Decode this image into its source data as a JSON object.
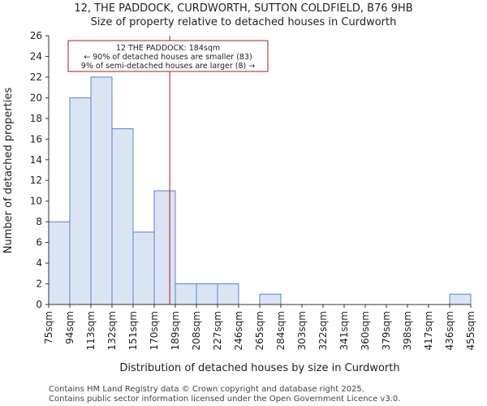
{
  "title_line1": "12, THE PADDOCK, CURDWORTH, SUTTON COLDFIELD, B76 9HB",
  "title_line2": "Size of property relative to detached houses in Curdworth",
  "footer_line1": "Contains HM Land Registry data © Crown copyright and database right 2025.",
  "footer_line2": "Contains public sector information licensed under the Open Government Licence v3.0.",
  "colors": {
    "bar_fill": "#dae4f3",
    "bar_stroke": "#5b84c4",
    "marker": "#b01818",
    "annotation_border": "#b01818"
  },
  "chart_data": {
    "type": "bar",
    "title": "12, THE PADDOCK, CURDWORTH, SUTTON COLDFIELD, B76 9HB",
    "subtitle": "Size of property relative to detached houses in Curdworth",
    "xlabel": "Distribution of detached houses by size in Curdworth",
    "ylabel": "Number of detached properties",
    "bin_edges": [
      "75sqm",
      "94sqm",
      "113sqm",
      "132sqm",
      "151sqm",
      "170sqm",
      "189sqm",
      "208sqm",
      "227sqm",
      "246sqm",
      "265sqm",
      "284sqm",
      "303sqm",
      "322sqm",
      "341sqm",
      "360sqm",
      "379sqm",
      "398sqm",
      "417sqm",
      "436sqm",
      "455sqm"
    ],
    "values": [
      8,
      20,
      22,
      17,
      7,
      11,
      2,
      2,
      2,
      0,
      1,
      0,
      0,
      0,
      0,
      0,
      0,
      0,
      0,
      1
    ],
    "ylim": [
      0,
      26
    ],
    "yticks": [
      0,
      2,
      4,
      6,
      8,
      10,
      12,
      14,
      16,
      18,
      20,
      22,
      24,
      26
    ],
    "grid": false,
    "marker": {
      "value_sqm": 184,
      "label_line1": "12 THE PADDOCK: 184sqm",
      "label_line2": "← 90% of detached houses are smaller (83)",
      "label_line3": "9% of semi-detached houses are larger (8) →"
    }
  }
}
